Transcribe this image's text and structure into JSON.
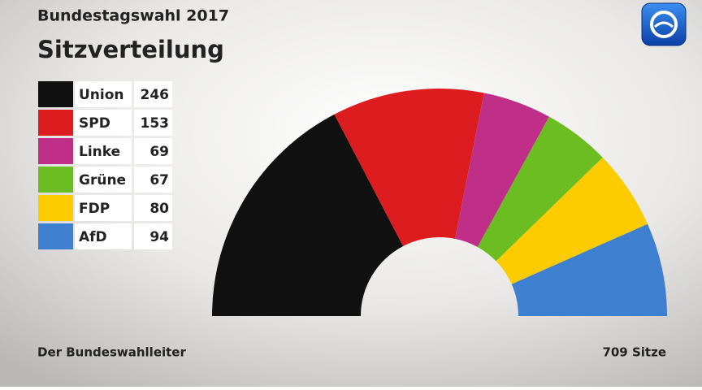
{
  "chart_data": {
    "type": "parliament",
    "title": "Bundestagswahl 2017",
    "subtitle": "Sitzverteilung",
    "categories": [
      "Union",
      "SPD",
      "Linke",
      "Grüne",
      "FDP",
      "AfD"
    ],
    "values": [
      246,
      153,
      69,
      67,
      80,
      94
    ],
    "colors": [
      "#111111",
      "#dc1c1f",
      "#bf2f87",
      "#6cbd22",
      "#fdcc00",
      "#3f7fd0"
    ],
    "total": {
      "value": 709,
      "label": "709 Sitze"
    },
    "source": "Der Bundeswahlleiter"
  }
}
